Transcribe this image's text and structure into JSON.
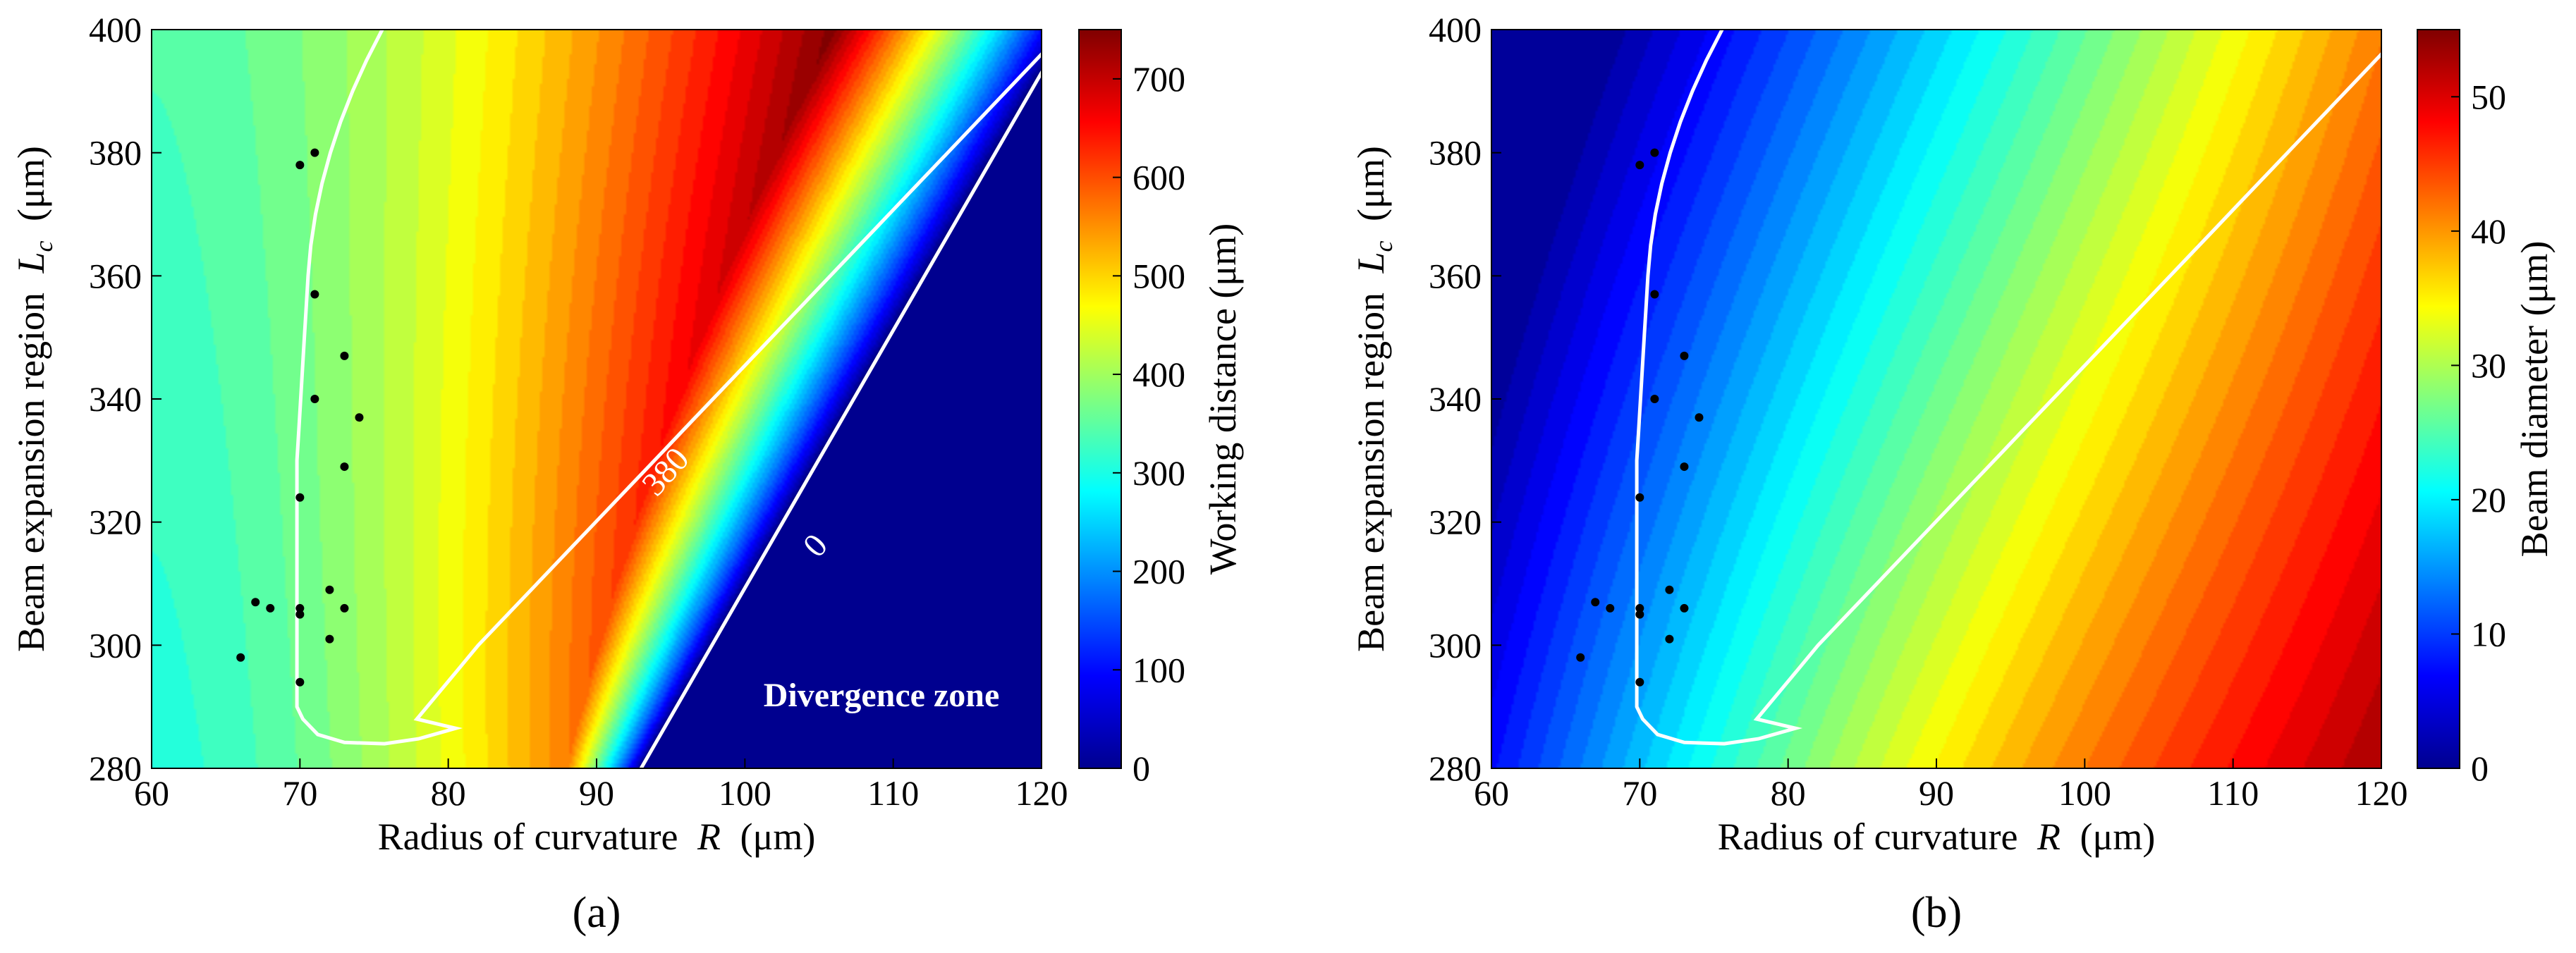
{
  "chart_data": [
    {
      "type": "heatmap",
      "panel_label": "(a)",
      "xlabel_prefix": "Radius of curvature",
      "xlabel_var": "R",
      "xlabel_unit": "(μm)",
      "ylabel_prefix": "Beam expansion region",
      "ylabel_var": "L",
      "ylabel_sub": "c",
      "ylabel_unit": "(μm)",
      "xlim": [
        60,
        120
      ],
      "ylim": [
        280,
        400
      ],
      "xticks": [
        "60",
        "70",
        "80",
        "90",
        "100",
        "110",
        "120"
      ],
      "yticks": [
        "280",
        "300",
        "320",
        "340",
        "360",
        "380",
        "400"
      ],
      "colorbar_label": "Working distance (μm)",
      "colorbar_range": [
        0,
        750
      ],
      "colorbar_ticks": [
        "0",
        "100",
        "200",
        "300",
        "400",
        "500",
        "600",
        "700"
      ],
      "contours": [
        {
          "level": 380,
          "label": "380"
        },
        {
          "level": 0,
          "label": "0"
        }
      ],
      "annotation": "Divergence zone",
      "points": [
        [
          66,
          298
        ],
        [
          67,
          307
        ],
        [
          68,
          306
        ],
        [
          70,
          306
        ],
        [
          70,
          305
        ],
        [
          70,
          294
        ],
        [
          70,
          324
        ],
        [
          72,
          309
        ],
        [
          72,
          301
        ],
        [
          73,
          306
        ],
        [
          73,
          329
        ],
        [
          73,
          347
        ],
        [
          74,
          337
        ],
        [
          71,
          340
        ],
        [
          71,
          357
        ],
        [
          70,
          378
        ],
        [
          71,
          380
        ]
      ]
    },
    {
      "type": "heatmap",
      "panel_label": "(b)",
      "xlabel_prefix": "Radius of curvature",
      "xlabel_var": "R",
      "xlabel_unit": "(μm)",
      "ylabel_prefix": "Beam expansion region",
      "ylabel_var": "L",
      "ylabel_sub": "c",
      "ylabel_unit": "(μm)",
      "xlim": [
        60,
        120
      ],
      "ylim": [
        280,
        400
      ],
      "xticks": [
        "60",
        "70",
        "80",
        "90",
        "100",
        "110",
        "120"
      ],
      "yticks": [
        "280",
        "300",
        "320",
        "340",
        "360",
        "380",
        "400"
      ],
      "colorbar_label": "Beam diameter (μm)",
      "colorbar_range": [
        0,
        55
      ],
      "colorbar_ticks": [
        "0",
        "10",
        "20",
        "30",
        "40",
        "50"
      ],
      "contours": [
        {
          "level": 380,
          "label": ""
        }
      ],
      "points": [
        [
          66,
          298
        ],
        [
          67,
          307
        ],
        [
          68,
          306
        ],
        [
          70,
          306
        ],
        [
          70,
          305
        ],
        [
          70,
          294
        ],
        [
          70,
          324
        ],
        [
          72,
          309
        ],
        [
          72,
          301
        ],
        [
          73,
          306
        ],
        [
          73,
          329
        ],
        [
          73,
          347
        ],
        [
          74,
          337
        ],
        [
          71,
          340
        ],
        [
          71,
          357
        ],
        [
          70,
          378
        ],
        [
          71,
          380
        ]
      ]
    }
  ]
}
